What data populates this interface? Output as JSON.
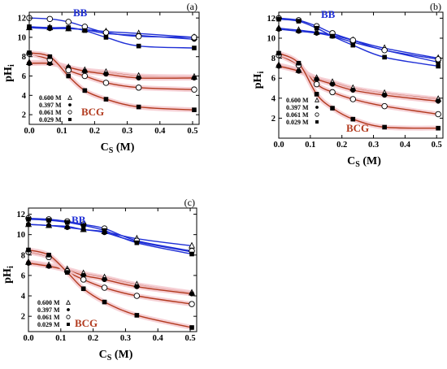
{
  "legend_entries": [
    {
      "label": "0.600 M",
      "marker": "open-triangle"
    },
    {
      "label": "0.397 M",
      "marker": "filled-circle"
    },
    {
      "label": "0.061 M",
      "marker": "open-circle"
    },
    {
      "label": "0.029 M",
      "marker": "filled-square"
    }
  ],
  "colors": {
    "bb_curve": "#1f2fd6",
    "bcg_curve": "#b23a1e",
    "bcg_band": "#f4c9cf",
    "axis": "#000000"
  },
  "chart_data": [
    {
      "panel_label": "(a)",
      "type": "scatter",
      "xlabel": "C",
      "xlabel_sub": "S",
      "xlabel_unit": "(M)",
      "ylabel": "pH",
      "ylabel_sub": "i",
      "xlim": [
        0,
        0.52
      ],
      "ylim": [
        1,
        12.6
      ],
      "xticks": [
        0.0,
        0.1,
        0.2,
        0.3,
        0.4,
        0.5
      ],
      "yticks": [
        2,
        4,
        6,
        8,
        10,
        12
      ],
      "bb_label": "BB",
      "bcg_label": "BCG",
      "series": [
        {
          "group": "BB",
          "marker": "open-triangle",
          "x": [
            0.0,
            0.063,
            0.12,
            0.17,
            0.235,
            0.335,
            0.505
          ],
          "y": [
            11.0,
            11.0,
            10.9,
            10.8,
            10.6,
            10.4,
            10.0
          ]
        },
        {
          "group": "BB",
          "marker": "filled-circle",
          "x": [
            0.0,
            0.063,
            0.12,
            0.17,
            0.235,
            0.335,
            0.505
          ],
          "y": [
            11.0,
            10.9,
            10.9,
            10.8,
            10.4,
            10.2,
            9.8
          ]
        },
        {
          "group": "BB",
          "marker": "open-circle",
          "x": [
            0.0,
            0.063,
            0.12,
            0.17,
            0.235,
            0.335,
            0.505
          ],
          "y": [
            12.0,
            11.9,
            11.6,
            11.1,
            10.5,
            10.1,
            10.0
          ]
        },
        {
          "group": "BB",
          "marker": "filled-square",
          "x": [
            0.0,
            0.063,
            0.12,
            0.17,
            0.235,
            0.335,
            0.505
          ],
          "y": [
            11.1,
            11.0,
            11.0,
            10.7,
            10.0,
            9.1,
            8.9
          ]
        },
        {
          "group": "BCG",
          "marker": "open-triangle",
          "x": [
            0.0,
            0.063,
            0.12,
            0.17,
            0.235,
            0.335,
            0.505
          ],
          "y": [
            7.4,
            7.4,
            6.9,
            6.6,
            6.4,
            6.0,
            5.9
          ]
        },
        {
          "group": "BCG",
          "marker": "filled-circle",
          "x": [
            0.0,
            0.063,
            0.12,
            0.17,
            0.235,
            0.335,
            0.505
          ],
          "y": [
            7.3,
            7.3,
            6.9,
            6.5,
            6.2,
            5.8,
            5.8
          ]
        },
        {
          "group": "BCG",
          "marker": "open-circle",
          "x": [
            0.0,
            0.063,
            0.12,
            0.17,
            0.235,
            0.335,
            0.505
          ],
          "y": [
            8.3,
            7.7,
            6.6,
            6.0,
            5.3,
            4.8,
            4.6
          ]
        },
        {
          "group": "BCG",
          "marker": "filled-square",
          "x": [
            0.0,
            0.063,
            0.12,
            0.17,
            0.235,
            0.335,
            0.505
          ],
          "y": [
            8.4,
            8.0,
            6.0,
            4.5,
            3.6,
            2.8,
            2.5
          ]
        }
      ]
    },
    {
      "panel_label": "(b)",
      "type": "scatter",
      "xlabel": "C",
      "xlabel_sub": "S",
      "xlabel_unit": "(M)",
      "ylabel": "pH",
      "ylabel_sub": "i",
      "xlim": [
        0,
        0.52
      ],
      "ylim": [
        0,
        12.6
      ],
      "xticks": [
        0.0,
        0.1,
        0.2,
        0.3,
        0.4,
        0.5
      ],
      "yticks": [
        2,
        4,
        6,
        8,
        10,
        12
      ],
      "bb_label": "BB",
      "bcg_label": "BCG",
      "series": [
        {
          "group": "BB",
          "marker": "open-triangle",
          "x": [
            0.0,
            0.063,
            0.12,
            0.17,
            0.235,
            0.335,
            0.505
          ],
          "y": [
            11.0,
            10.8,
            10.6,
            10.3,
            9.8,
            9.0,
            8.0
          ]
        },
        {
          "group": "BB",
          "marker": "filled-circle",
          "x": [
            0.0,
            0.063,
            0.12,
            0.17,
            0.235,
            0.335,
            0.505
          ],
          "y": [
            10.9,
            10.7,
            10.5,
            10.2,
            9.6,
            8.8,
            7.6
          ]
        },
        {
          "group": "BB",
          "marker": "open-circle",
          "x": [
            0.0,
            0.063,
            0.12,
            0.17,
            0.235,
            0.335,
            0.505
          ],
          "y": [
            12.0,
            11.8,
            11.2,
            10.5,
            9.8,
            8.8,
            7.9
          ]
        },
        {
          "group": "BB",
          "marker": "filled-square",
          "x": [
            0.0,
            0.063,
            0.12,
            0.17,
            0.235,
            0.335,
            0.505
          ],
          "y": [
            11.9,
            11.7,
            11.0,
            10.2,
            9.3,
            8.1,
            7.2
          ]
        },
        {
          "group": "BCG",
          "marker": "open-triangle",
          "x": [
            0.0,
            0.063,
            0.12,
            0.17,
            0.235,
            0.335,
            0.505
          ],
          "y": [
            7.3,
            6.8,
            6.0,
            5.6,
            5.0,
            4.5,
            3.9
          ]
        },
        {
          "group": "BCG",
          "marker": "filled-circle",
          "x": [
            0.0,
            0.063,
            0.12,
            0.17,
            0.235,
            0.335,
            0.505
          ],
          "y": [
            7.2,
            6.7,
            5.9,
            5.4,
            4.8,
            4.3,
            3.7
          ]
        },
        {
          "group": "BCG",
          "marker": "open-circle",
          "x": [
            0.0,
            0.063,
            0.12,
            0.17,
            0.235,
            0.335,
            0.505
          ],
          "y": [
            8.3,
            7.3,
            5.4,
            4.6,
            3.9,
            3.2,
            2.4
          ]
        },
        {
          "group": "BCG",
          "marker": "filled-square",
          "x": [
            0.0,
            0.063,
            0.12,
            0.17,
            0.235,
            0.335,
            0.505
          ],
          "y": [
            8.5,
            7.5,
            4.4,
            3.0,
            1.9,
            1.1,
            1.0
          ]
        }
      ]
    },
    {
      "panel_label": "(c)",
      "type": "scatter",
      "xlabel": "C",
      "xlabel_sub": "S",
      "xlabel_unit": "(M)",
      "ylabel": "pH",
      "ylabel_sub": "i",
      "xlim": [
        0,
        0.52
      ],
      "ylim": [
        0.5,
        12.6
      ],
      "xticks": [
        0.0,
        0.1,
        0.2,
        0.3,
        0.4,
        0.5
      ],
      "yticks": [
        2,
        4,
        6,
        8,
        10,
        12
      ],
      "bb_label": "BB",
      "bcg_label": "BCG",
      "series": [
        {
          "group": "BB",
          "marker": "open-triangle",
          "x": [
            0.0,
            0.063,
            0.12,
            0.17,
            0.235,
            0.335,
            0.505
          ],
          "y": [
            11.0,
            10.9,
            10.8,
            10.5,
            10.3,
            9.6,
            8.9
          ]
        },
        {
          "group": "BB",
          "marker": "filled-circle",
          "x": [
            0.0,
            0.063,
            0.12,
            0.17,
            0.235,
            0.335,
            0.505
          ],
          "y": [
            11.0,
            10.9,
            10.7,
            10.5,
            10.2,
            9.3,
            8.3
          ]
        },
        {
          "group": "BB",
          "marker": "open-circle",
          "x": [
            0.0,
            0.063,
            0.12,
            0.17,
            0.235,
            0.335,
            0.505
          ],
          "y": [
            11.6,
            11.5,
            11.3,
            11.0,
            10.6,
            9.4,
            8.4
          ]
        },
        {
          "group": "BB",
          "marker": "filled-square",
          "x": [
            0.0,
            0.063,
            0.12,
            0.17,
            0.235,
            0.335,
            0.505
          ],
          "y": [
            11.5,
            11.4,
            11.2,
            10.9,
            10.4,
            9.2,
            8.1
          ]
        },
        {
          "group": "BCG",
          "marker": "open-triangle",
          "x": [
            0.0,
            0.063,
            0.12,
            0.17,
            0.235,
            0.335,
            0.505
          ],
          "y": [
            7.3,
            7.0,
            6.6,
            6.2,
            5.8,
            5.1,
            4.3
          ]
        },
        {
          "group": "BCG",
          "marker": "filled-circle",
          "x": [
            0.0,
            0.063,
            0.12,
            0.17,
            0.235,
            0.335,
            0.505
          ],
          "y": [
            7.2,
            6.9,
            6.5,
            6.0,
            5.6,
            4.9,
            4.2
          ]
        },
        {
          "group": "BCG",
          "marker": "open-circle",
          "x": [
            0.0,
            0.063,
            0.12,
            0.17,
            0.235,
            0.335,
            0.505
          ],
          "y": [
            8.3,
            7.8,
            6.4,
            5.6,
            4.8,
            4.0,
            3.2
          ]
        },
        {
          "group": "BCG",
          "marker": "filled-square",
          "x": [
            0.0,
            0.063,
            0.12,
            0.17,
            0.235,
            0.335,
            0.505
          ],
          "y": [
            8.5,
            8.0,
            6.3,
            4.7,
            3.4,
            2.1,
            0.9
          ]
        }
      ]
    }
  ]
}
